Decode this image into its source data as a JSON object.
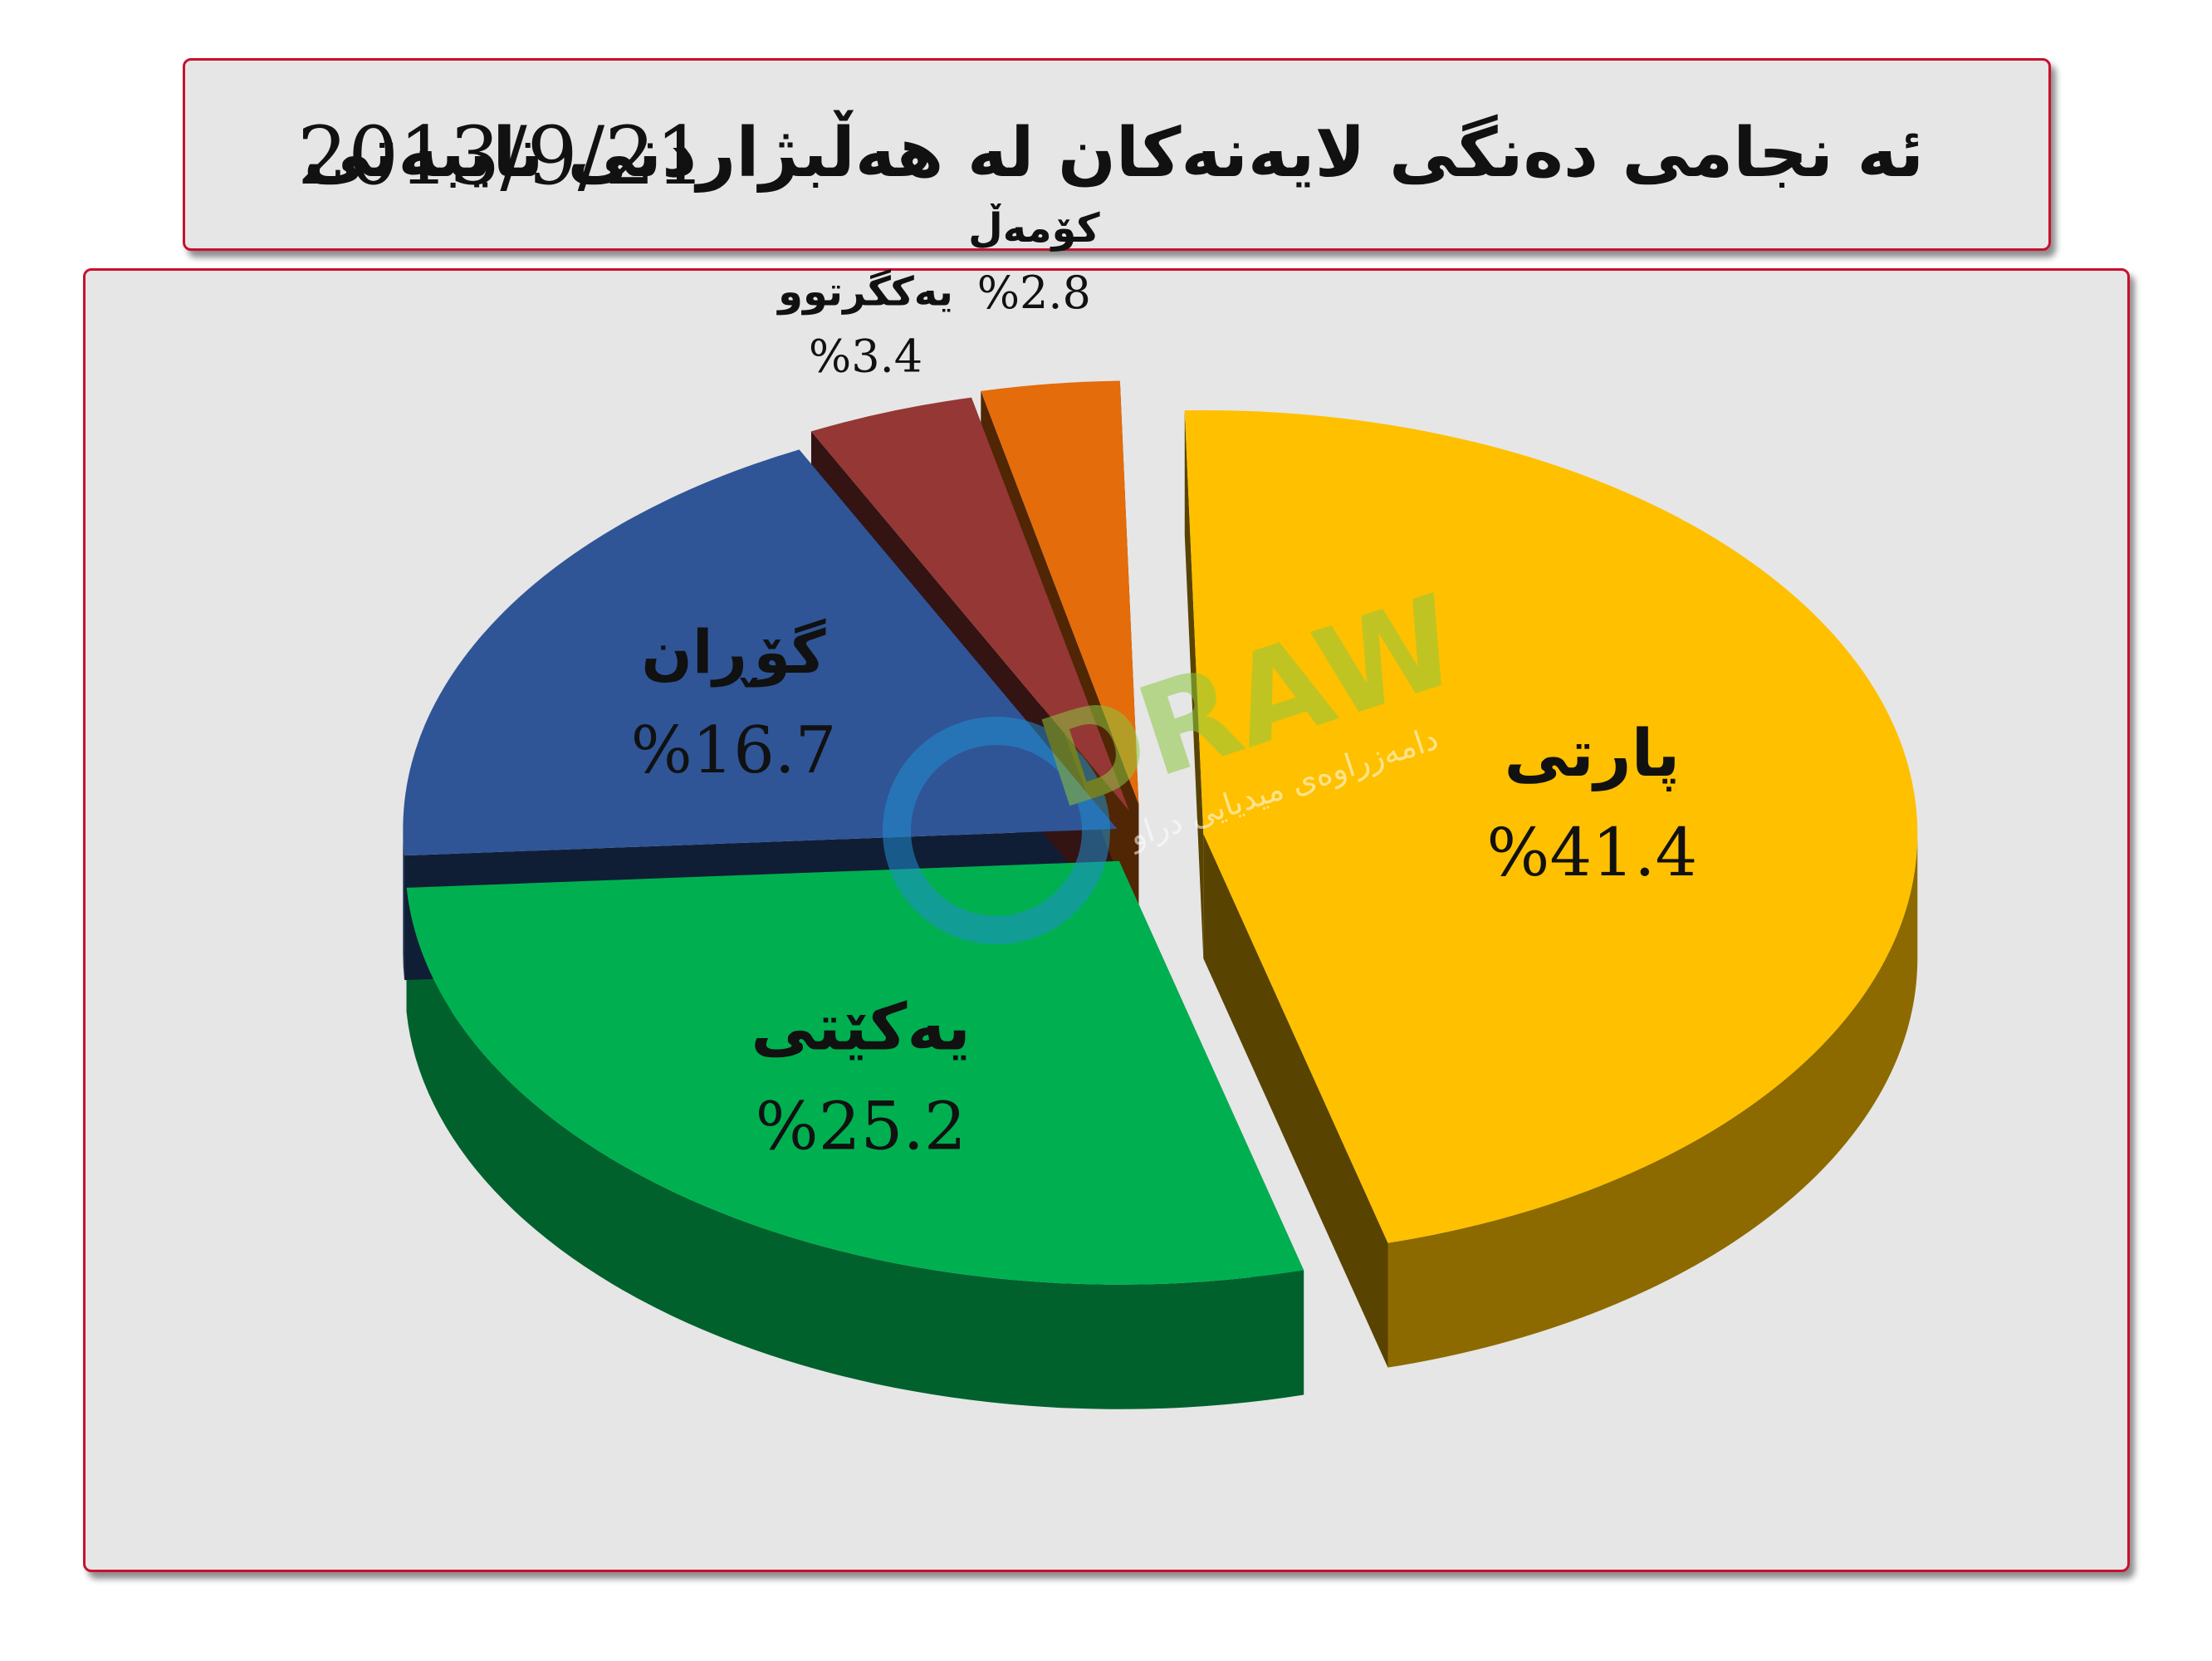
{
  "title": {
    "text": "ئه نجامی دەنگی لایەنەکان لە هەڵبژاردنی تایبەتی",
    "date": "2013/9/21"
  },
  "watermark": {
    "logo_text": "DRAW",
    "subtitle": "دامەزراوەی میدیایی دراو"
  },
  "chart_data": {
    "type": "pie",
    "title": "ئه نجامی دەنگی لایەنەکان لە هەڵبژاردنی تایبەتی 2013/9/21",
    "unit": "%",
    "categories": [
      "پارتی",
      "یەکێتی",
      "گۆڕان",
      "یەکگرتوو",
      "کۆمەڵ"
    ],
    "values": [
      41.4,
      25.2,
      16.7,
      3.4,
      2.8
    ],
    "value_labels": [
      "%41.4",
      "%25.2",
      "%16.7",
      "%3.4",
      "%2.8"
    ],
    "colors": [
      "#FFC000",
      "#00B050",
      "#2F5597",
      "#953735",
      "#E46C0A"
    ],
    "exploded": true,
    "style": "3d"
  }
}
